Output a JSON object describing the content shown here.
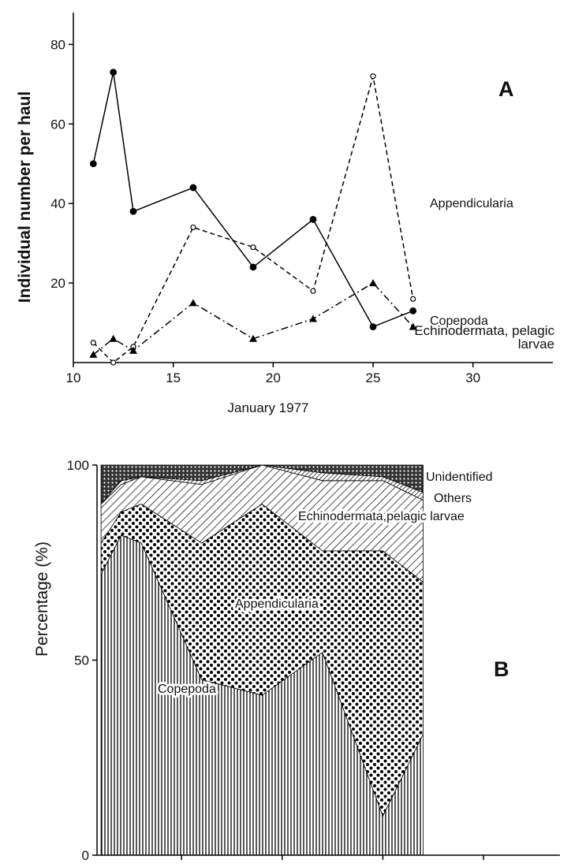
{
  "chart_data": [
    {
      "type": "line",
      "panel": "A",
      "x_label": "January 1977",
      "y_label": "Individual number per haul",
      "x": [
        11,
        12,
        13,
        16,
        19,
        22,
        25,
        27
      ],
      "series": [
        {
          "name": "Copepoda",
          "color": "#000000",
          "dash": "solid",
          "marker": "filled-circle",
          "values": [
            50,
            73,
            38,
            44,
            24,
            36,
            9,
            13
          ]
        },
        {
          "name": "Appendicularia",
          "color": "#000000",
          "dash": "dashed",
          "marker": "open-circle",
          "values": [
            5,
            0,
            4,
            34,
            29,
            18,
            72,
            16
          ]
        },
        {
          "name": "Echinodermata, pelagic larvae",
          "color": "#000000",
          "dash": "dashdot",
          "marker": "triangle",
          "values": [
            2,
            6,
            3,
            15,
            6,
            11,
            20,
            9
          ]
        }
      ],
      "xlim": [
        10,
        34
      ],
      "xticks": [
        10,
        15,
        20,
        25,
        30
      ],
      "ylim": [
        0,
        88
      ],
      "yticks": [
        20,
        40,
        60,
        80
      ]
    },
    {
      "type": "stacked-area",
      "panel": "B",
      "y_label": "Percentage (%)",
      "x": [
        11,
        12,
        13,
        16,
        19,
        22,
        25,
        27
      ],
      "series": [
        {
          "name": "Copepoda",
          "color": "#000000",
          "pattern": "vertical",
          "values": [
            72,
            82,
            80,
            45,
            41,
            52,
            10,
            31
          ]
        },
        {
          "name": "Appendicularia",
          "color": "#000000",
          "pattern": "dots",
          "values": [
            8,
            6,
            10,
            35,
            49,
            26,
            68,
            39
          ]
        },
        {
          "name": "Echinodermata,pelagic larvae",
          "color": "#000000",
          "pattern": "hatch",
          "values": [
            10,
            7,
            7,
            15,
            10,
            18,
            18,
            21
          ]
        },
        {
          "name": "Others",
          "color": "#000000",
          "pattern": "dense-hatch",
          "values": [
            0,
            1,
            0,
            1,
            0,
            2,
            1,
            2
          ]
        },
        {
          "name": "Unidentified",
          "color": "#000000",
          "pattern": "cross",
          "values": [
            10,
            4,
            3,
            4,
            0,
            2,
            3,
            7
          ]
        }
      ],
      "xlim": [
        10.8,
        33.8
      ],
      "xticks": [
        15,
        20,
        25,
        30
      ],
      "ylim": [
        0,
        100
      ],
      "yticks": [
        0,
        50,
        100
      ]
    }
  ]
}
